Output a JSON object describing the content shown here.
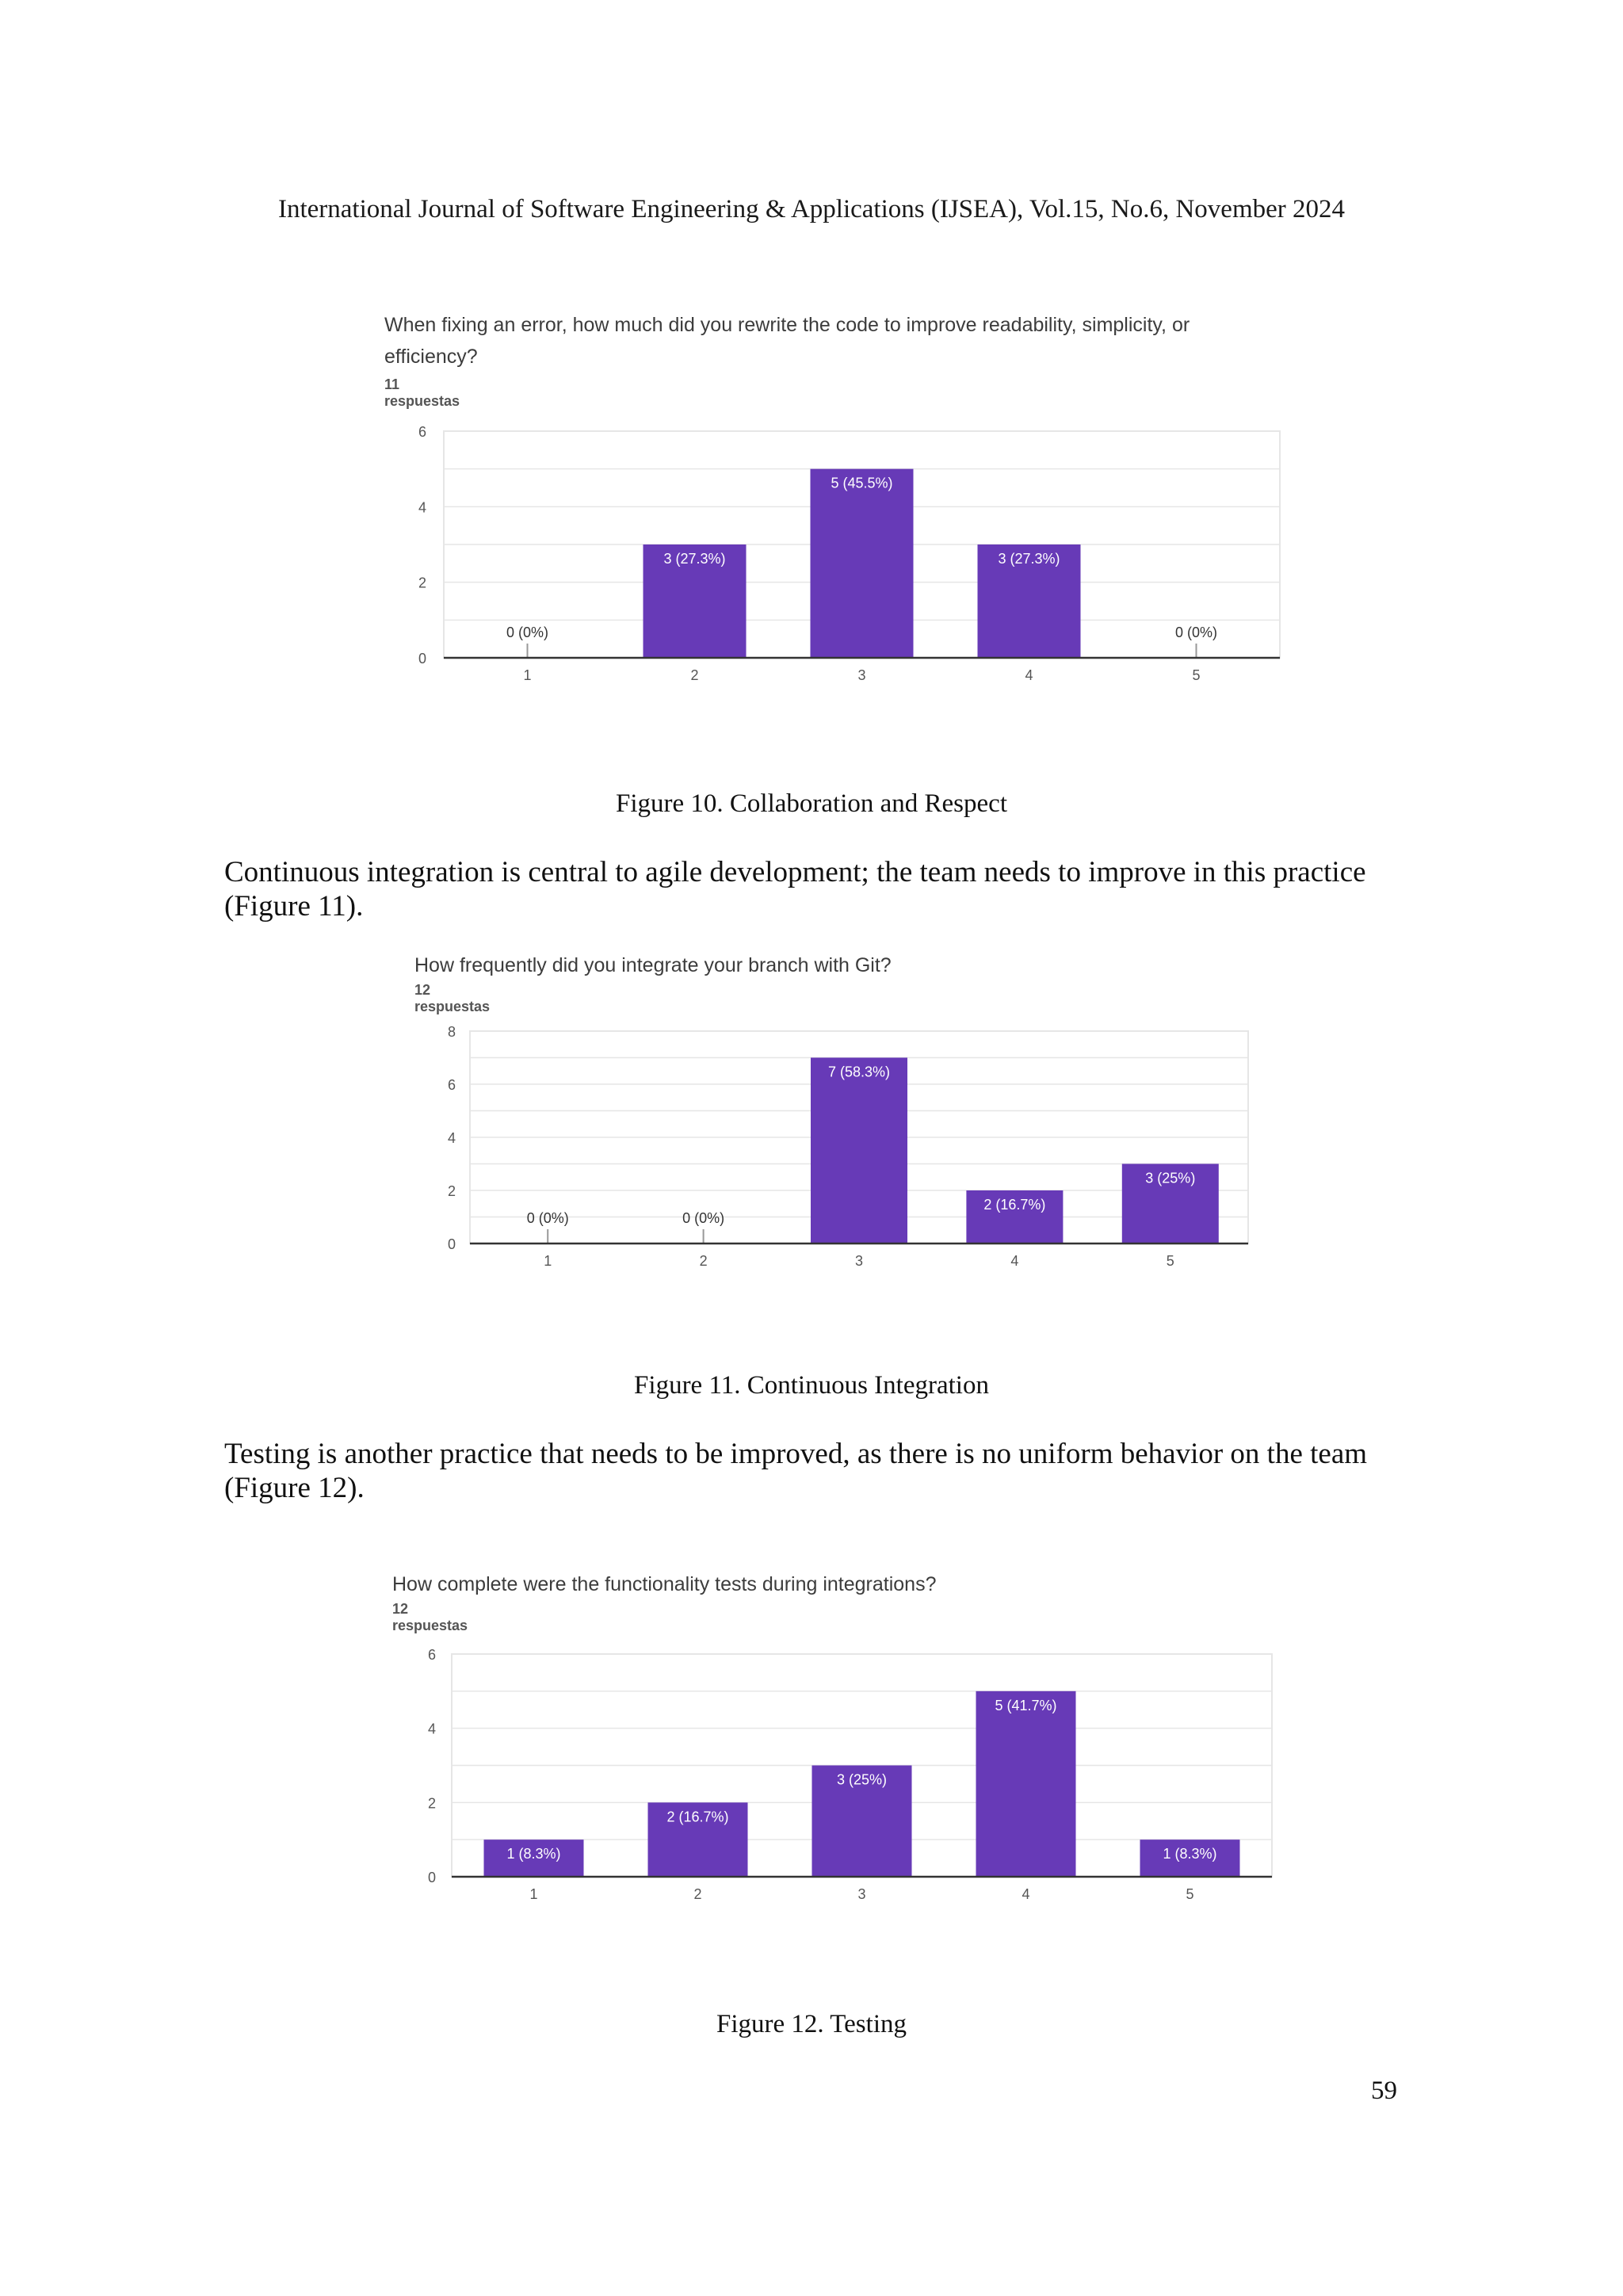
{
  "header": "International Journal of Software Engineering & Applications (IJSEA), Vol.15, No.6, November 2024",
  "figures": [
    {
      "title_lines": [
        "When fixing an error, how much did you rewrite the code to improve readability, simplicity, or",
        "efficiency?"
      ],
      "subtitle": "11 respuestas",
      "caption": "Figure 10.  Collaboration and Respect"
    },
    {
      "title_lines": [
        "How frequently did you integrate your branch with Git?"
      ],
      "subtitle": "12 respuestas",
      "caption": "Figure 11.  Continuous Integration"
    },
    {
      "title_lines": [
        "How complete were the functionality tests during integrations?"
      ],
      "subtitle": "12 respuestas",
      "caption": "Figure 12.  Testing"
    }
  ],
  "paragraphs": [
    "Continuous integration is central to agile development; the team needs to improve in this practice (Figure 11).",
    "Testing is another practice that needs to be improved, as there is no uniform behavior on the team (Figure 12)."
  ],
  "page_number": "59",
  "colors": {
    "bar": "#673ab7",
    "grid": "#e6e6e6",
    "axis": "#333333",
    "tick_text": "#555555",
    "label_on_bar": "#ffffff"
  },
  "chart_data": [
    {
      "type": "bar",
      "title": "When fixing an error, how much did you rewrite the code to improve readability, simplicity, or efficiency?",
      "categories": [
        "1",
        "2",
        "3",
        "4",
        "5"
      ],
      "values": [
        0,
        3,
        5,
        3,
        0
      ],
      "data_labels": [
        "0 (0%)",
        "3 (27.3%)",
        "5 (45.5%)",
        "3 (27.3%)",
        "0 (0%)"
      ],
      "ylim": [
        0,
        6
      ],
      "yticks": [
        "0",
        "2",
        "4",
        "6"
      ],
      "grid": true
    },
    {
      "type": "bar",
      "title": "How frequently did you integrate your branch with Git?",
      "categories": [
        "1",
        "2",
        "3",
        "4",
        "5"
      ],
      "values": [
        0,
        0,
        7,
        2,
        3
      ],
      "data_labels": [
        "0 (0%)",
        "0 (0%)",
        "7 (58.3%)",
        "2 (16.7%)",
        "3 (25%)"
      ],
      "ylim": [
        0,
        8
      ],
      "yticks": [
        "0",
        "2",
        "4",
        "6",
        "8"
      ],
      "grid": true
    },
    {
      "type": "bar",
      "title": "How complete were the functionality tests during integrations?",
      "categories": [
        "1",
        "2",
        "3",
        "4",
        "5"
      ],
      "values": [
        1,
        2,
        3,
        5,
        1
      ],
      "data_labels": [
        "1 (8.3%)",
        "2 (16.7%)",
        "3 (25%)",
        "5 (41.7%)",
        "1 (8.3%)"
      ],
      "ylim": [
        0,
        6
      ],
      "yticks": [
        "0",
        "2",
        "4",
        "6"
      ],
      "grid": true
    }
  ]
}
